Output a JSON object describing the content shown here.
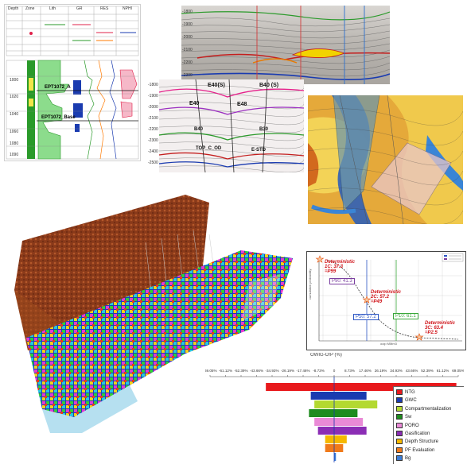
{
  "well_log": {
    "depths": [
      "1000",
      "1020",
      "1040",
      "1060",
      "1080",
      "1090"
    ],
    "tops": [
      "EPT1072_A",
      "EPT1072_Base"
    ],
    "header_cells": [
      "Depth",
      "Zone",
      "Lith",
      "GR",
      "RES",
      "NPHI"
    ]
  },
  "seismic_a": {
    "depths": [
      "-1800",
      "-1900",
      "-2000",
      "-2100",
      "-2200",
      "-2300"
    ]
  },
  "seismic_b": {
    "depths": [
      "-1800",
      "-1900",
      "-2000",
      "-2100",
      "-2200",
      "-2300",
      "-2400",
      "-2500"
    ],
    "horizons": [
      "E40(S)",
      "E40",
      "E48",
      "B40 (S)",
      "B40",
      "B30",
      "TOP_C_OD",
      "E-STD"
    ]
  },
  "cdf_chart": {
    "p90": "P90: 41.3",
    "p50": "P50: 57.2",
    "p10": "P10: 61.1",
    "det_1": [
      "Deterministic",
      "1C: 37.3",
      "=P99"
    ],
    "det_2": [
      "Deterministic",
      "2C: 57.2",
      "=P49"
    ],
    "det_3": [
      "Deterministic",
      "3C: 63.4",
      "=P2.5"
    ],
    "xlabel": "ooip MMm3",
    "ylabel": "cumulative probability",
    "colors": {
      "p90": "#7a3fa0",
      "p50": "#2c56c4",
      "p10": "#3aa83a",
      "det": "#d0141a"
    }
  },
  "tornado": {
    "title": "OWIG-O!P (%)",
    "ticks": [
      "-69.05%",
      "-61.12%",
      "-52.39%",
      "-43.66%",
      "-34.93%",
      "-26.19%",
      "-17.46%",
      "-8.73%",
      "0",
      "8.73%",
      "17.46%",
      "26.19%",
      "34.93%",
      "43.66%",
      "52.39%",
      "61.12%",
      "69.05%"
    ],
    "bars": [
      {
        "name": "NTG",
        "low": -38,
        "high": 68,
        "color": "#e8191c"
      },
      {
        "name": "GWC",
        "low": -13,
        "high": 18,
        "color": "#1a3bb0"
      },
      {
        "name": "Compartmentalization",
        "low": -11,
        "high": 24,
        "color": "#b3d930"
      },
      {
        "name": "Sw",
        "low": -14,
        "high": 13,
        "color": "#1e8c1e"
      },
      {
        "name": "PORO",
        "low": -11,
        "high": 16,
        "color": "#e98ad6"
      },
      {
        "name": "Gasification",
        "low": -9,
        "high": 18,
        "color": "#8b2db5"
      },
      {
        "name": "Depth Structure",
        "low": -5,
        "high": 7,
        "color": "#f5b800"
      },
      {
        "name": "PF Evaluation",
        "low": -5,
        "high": 5,
        "color": "#f07a1a"
      },
      {
        "name": "Bg",
        "low": 0,
        "high": 1,
        "color": "#3a7dd8"
      }
    ]
  }
}
